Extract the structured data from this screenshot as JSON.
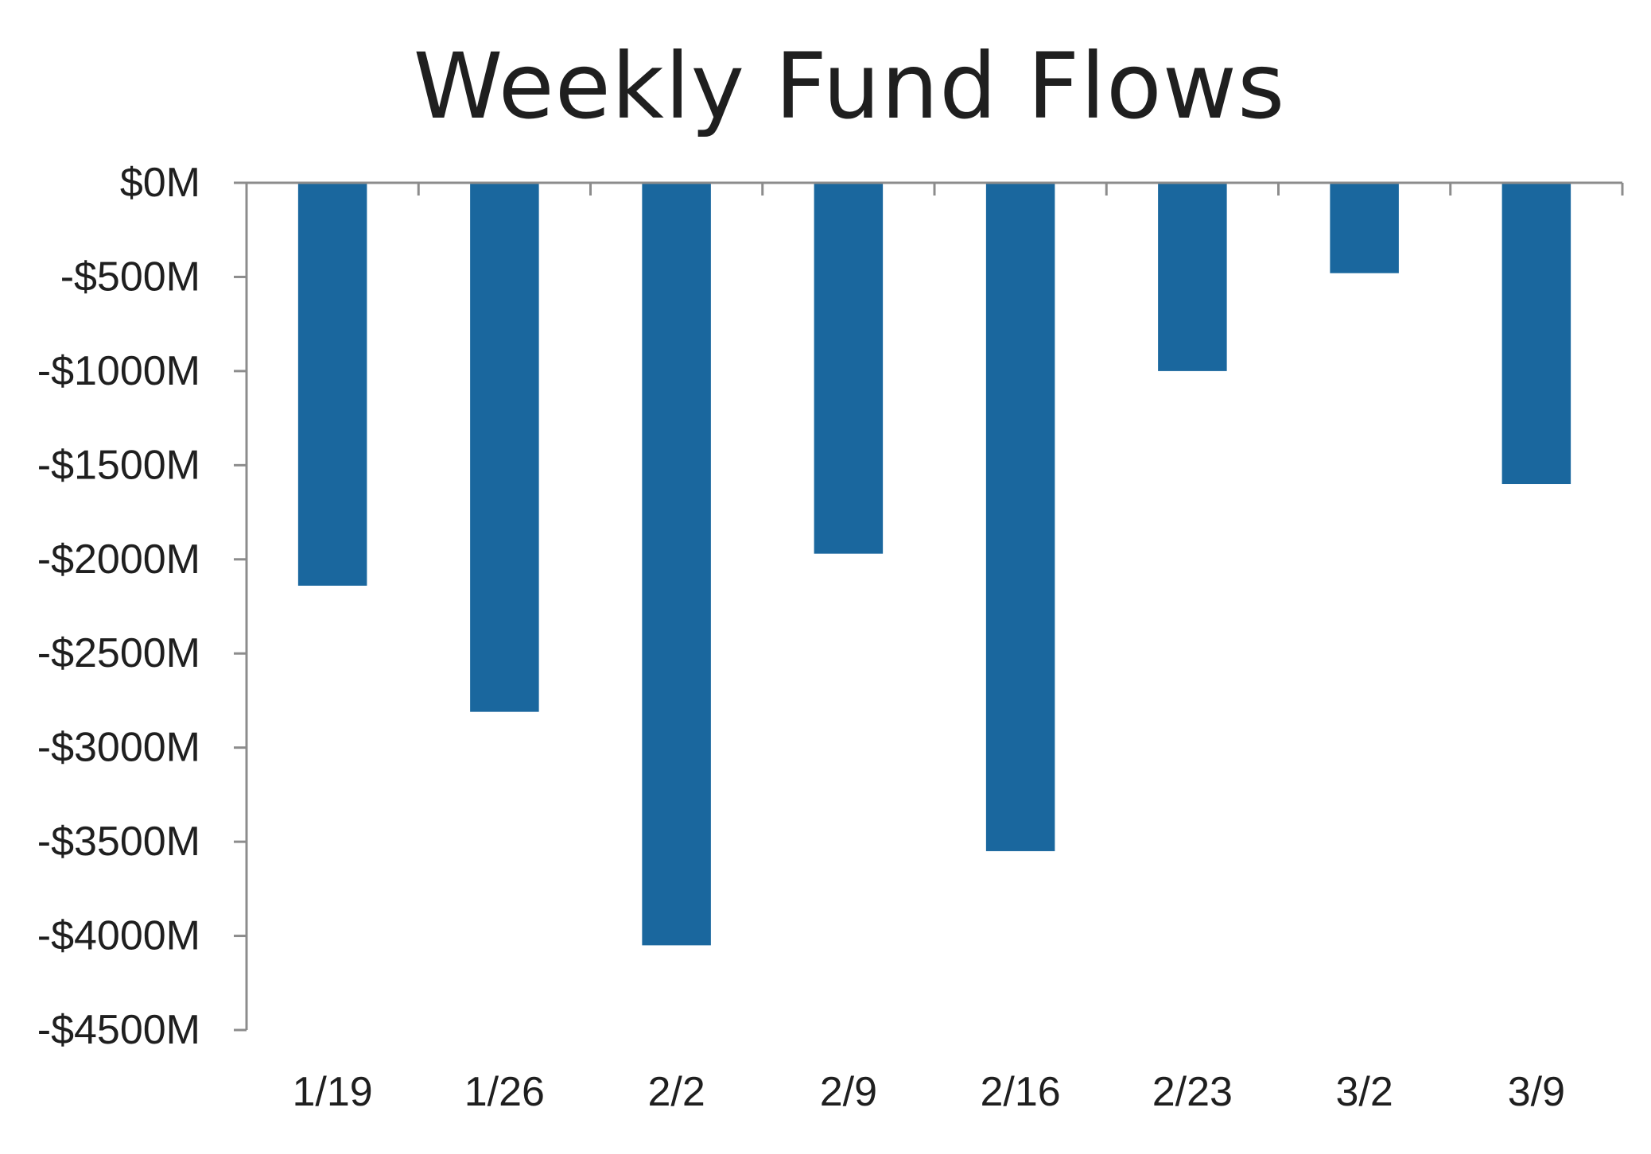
{
  "chart_data": {
    "type": "bar",
    "title": "Weekly Fund Flows",
    "xlabel": "",
    "ylabel": "",
    "categories": [
      "1/19",
      "1/26",
      "2/2",
      "2/9",
      "2/16",
      "2/23",
      "3/2",
      "3/9"
    ],
    "values": [
      -2140,
      -2810,
      -4050,
      -1970,
      -3550,
      -1000,
      -480,
      -1600
    ],
    "ylim": [
      -4500,
      0
    ],
    "yticks": [
      0,
      -500,
      -1000,
      -1500,
      -2000,
      -2500,
      -3000,
      -3500,
      -4000,
      -4500
    ],
    "ytick_labels": [
      "$0M",
      "-$500M",
      "-$1000M",
      "-$1500M",
      "-$2000M",
      "-$2500M",
      "-$3000M",
      "-$3500M",
      "-$4000M",
      "-$4500M"
    ],
    "grid": false,
    "legend": "none",
    "colors": {
      "bar": "#1A679E",
      "axis": "#8C8C8C",
      "text": "#1F1F1F"
    }
  }
}
